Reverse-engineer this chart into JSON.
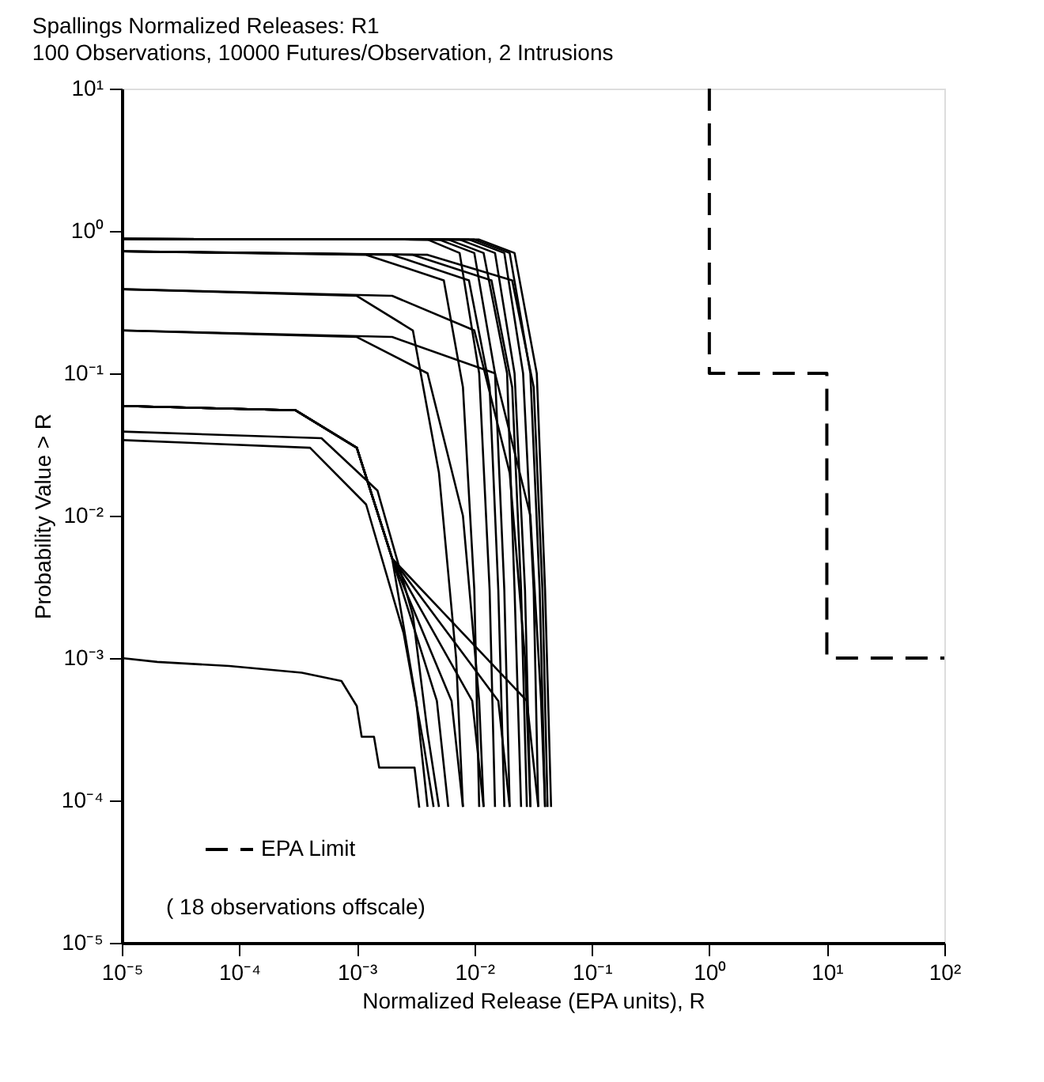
{
  "chart_data": {
    "type": "line",
    "title": "Spallings Normalized Releases:  R1",
    "subtitle": "100 Observations, 10000 Futures/Observation, 2 Intrusions",
    "xlabel": "Normalized Release (EPA units), R",
    "ylabel": "Probability Value > R",
    "log": "xy",
    "grid": false,
    "legend": "bottom left",
    "xlim": [
      1e-05,
      100
    ],
    "ylim": [
      1e-05,
      10
    ],
    "xticks": [
      {
        "value": 1e-05,
        "label": "10⁻⁵"
      },
      {
        "value": 0.0001,
        "label": "10⁻⁴"
      },
      {
        "value": 0.001,
        "label": "10⁻³"
      },
      {
        "value": 0.01,
        "label": "10⁻²"
      },
      {
        "value": 0.1,
        "label": "10⁻¹"
      },
      {
        "value": 1,
        "label": "10⁰"
      },
      {
        "value": 10,
        "label": "10¹"
      },
      {
        "value": 100,
        "label": "10²"
      }
    ],
    "yticks": [
      {
        "value": 1e-05,
        "label": "10⁻⁵"
      },
      {
        "value": 0.0001,
        "label": "10⁻⁴"
      },
      {
        "value": 0.001,
        "label": "10⁻³"
      },
      {
        "value": 0.01,
        "label": "10⁻²"
      },
      {
        "value": 0.1,
        "label": "10⁻¹"
      },
      {
        "value": 1,
        "label": "10⁰"
      },
      {
        "value": 10,
        "label": "10¹"
      }
    ],
    "annotations": [
      "( 18 observations offscale)"
    ],
    "series": [
      {
        "name": "EPA Limit",
        "color": "#000000",
        "line_style": "dashed",
        "x": [
          1,
          1,
          10,
          10,
          100
        ],
        "values": [
          10,
          0.1,
          0.1,
          0.001,
          0.001
        ]
      },
      {
        "color": "#000000",
        "x": [
          1e-05,
          0.011,
          0.022,
          0.034,
          0.04,
          0.045
        ],
        "values": [
          0.88,
          0.87,
          0.7,
          0.1,
          0.003,
          9e-05
        ]
      },
      {
        "color": "#000000",
        "x": [
          1e-05,
          0.01,
          0.02,
          0.03,
          0.036,
          0.04
        ],
        "values": [
          0.88,
          0.87,
          0.7,
          0.1,
          0.003,
          9e-05
        ]
      },
      {
        "color": "#000000",
        "x": [
          1e-05,
          0.009,
          0.018,
          0.026,
          0.032,
          0.035
        ],
        "values": [
          0.88,
          0.87,
          0.7,
          0.1,
          0.003,
          9e-05
        ]
      },
      {
        "color": "#000000",
        "x": [
          1e-05,
          0.0075,
          0.015,
          0.022,
          0.027,
          0.03
        ],
        "values": [
          0.88,
          0.87,
          0.7,
          0.1,
          0.003,
          9e-05
        ]
      },
      {
        "color": "#000000",
        "x": [
          1e-05,
          0.006,
          0.012,
          0.019,
          0.022,
          0.025
        ],
        "values": [
          0.88,
          0.87,
          0.7,
          0.1,
          0.003,
          9e-05
        ]
      },
      {
        "color": "#000000",
        "x": [
          1e-05,
          0.005,
          0.01,
          0.015,
          0.018,
          0.02
        ],
        "values": [
          0.88,
          0.87,
          0.7,
          0.1,
          0.003,
          9e-05
        ]
      },
      {
        "color": "#000000",
        "x": [
          1e-05,
          0.004,
          0.0075,
          0.011,
          0.0135,
          0.015
        ],
        "values": [
          0.88,
          0.87,
          0.7,
          0.1,
          0.003,
          9e-05
        ]
      },
      {
        "color": "#000000",
        "x": [
          1e-05,
          0.004,
          0.021,
          0.032,
          0.038,
          0.042
        ],
        "values": [
          0.72,
          0.68,
          0.45,
          0.08,
          0.003,
          9e-05
        ]
      },
      {
        "color": "#000000",
        "x": [
          1e-05,
          0.003,
          0.014,
          0.021,
          0.025,
          0.028
        ],
        "values": [
          0.72,
          0.68,
          0.45,
          0.08,
          0.003,
          9e-05
        ]
      },
      {
        "color": "#000000",
        "x": [
          1e-05,
          0.002,
          0.009,
          0.0135,
          0.016,
          0.018
        ],
        "values": [
          0.72,
          0.68,
          0.45,
          0.08,
          0.003,
          9e-05
        ]
      },
      {
        "color": "#000000",
        "x": [
          1e-05,
          0.0012,
          0.0055,
          0.008,
          0.01,
          0.011
        ],
        "values": [
          0.72,
          0.68,
          0.45,
          0.08,
          0.003,
          9e-05
        ]
      },
      {
        "color": "#000000",
        "x": [
          1e-05,
          0.001,
          0.003,
          0.005,
          0.007,
          0.008
        ],
        "values": [
          0.39,
          0.35,
          0.2,
          0.02,
          0.001,
          9e-05
        ]
      },
      {
        "color": "#000000",
        "x": [
          1e-05,
          0.002,
          0.01,
          0.02,
          0.027,
          0.03
        ],
        "values": [
          0.39,
          0.35,
          0.2,
          0.02,
          0.001,
          9e-05
        ]
      },
      {
        "color": "#000000",
        "x": [
          1e-05,
          0.001,
          0.004,
          0.008,
          0.011,
          0.012
        ],
        "values": [
          0.2,
          0.18,
          0.1,
          0.01,
          0.0005,
          9e-05
        ]
      },
      {
        "color": "#000000",
        "x": [
          1e-05,
          0.002,
          0.015,
          0.03,
          0.037,
          0.04
        ],
        "values": [
          0.2,
          0.18,
          0.1,
          0.01,
          0.0005,
          9e-05
        ]
      },
      {
        "color": "#000000",
        "x": [
          1e-05,
          0.0003,
          0.001,
          0.002,
          0.0032,
          0.004
        ],
        "values": [
          0.059,
          0.055,
          0.03,
          0.005,
          0.0005,
          9e-05
        ]
      },
      {
        "color": "#000000",
        "x": [
          1e-05,
          0.0003,
          0.001,
          0.002,
          0.0048,
          0.006
        ],
        "values": [
          0.059,
          0.055,
          0.03,
          0.005,
          0.0005,
          9e-05
        ]
      },
      {
        "color": "#000000",
        "x": [
          1e-05,
          0.0003,
          0.001,
          0.002,
          0.0064,
          0.008
        ],
        "values": [
          0.059,
          0.055,
          0.03,
          0.005,
          0.0005,
          9e-05
        ]
      },
      {
        "color": "#000000",
        "x": [
          1e-05,
          0.0003,
          0.001,
          0.002,
          0.0096,
          0.012
        ],
        "values": [
          0.059,
          0.055,
          0.03,
          0.005,
          0.0005,
          9e-05
        ]
      },
      {
        "color": "#000000",
        "x": [
          1e-05,
          0.0003,
          0.001,
          0.002,
          0.016,
          0.02
        ],
        "values": [
          0.059,
          0.055,
          0.03,
          0.005,
          0.0005,
          9e-05
        ]
      },
      {
        "color": "#000000",
        "x": [
          1e-05,
          0.0003,
          0.001,
          0.002,
          0.028,
          0.035
        ],
        "values": [
          0.059,
          0.055,
          0.03,
          0.005,
          0.0005,
          9e-05
        ]
      },
      {
        "color": "#000000",
        "x": [
          1e-05,
          0.0005,
          0.0015,
          0.003,
          0.004,
          0.005
        ],
        "values": [
          0.039,
          0.035,
          0.015,
          0.002,
          0.0003,
          9e-05
        ]
      },
      {
        "color": "#000000",
        "x": [
          1e-05,
          0.0004,
          0.0012,
          0.0025,
          0.0037,
          0.0045
        ],
        "values": [
          0.034,
          0.03,
          0.012,
          0.0015,
          0.00025,
          9e-05
        ]
      },
      {
        "color": "#000000",
        "x": [
          1e-05,
          2e-05,
          8.2e-05,
          0.00034,
          0.00074,
          0.001,
          0.0011,
          0.0014,
          0.00155,
          0.0031,
          0.0034
        ],
        "values": [
          0.001,
          0.00094,
          0.00088,
          0.00079,
          0.00069,
          0.00046,
          0.00028,
          0.00028,
          0.00017,
          0.00017,
          8.9e-05
        ]
      }
    ]
  }
}
